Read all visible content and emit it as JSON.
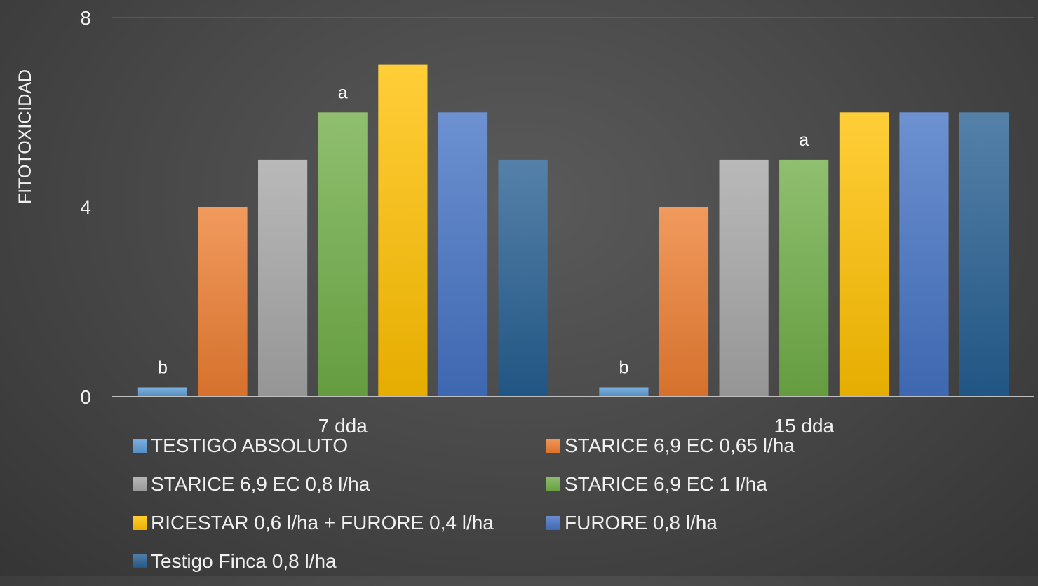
{
  "chart_data": {
    "type": "bar",
    "title": "",
    "xlabel": "",
    "ylabel": "FITOTOXICIDAD",
    "ylim": [
      0,
      8
    ],
    "yticks": [
      "0",
      "4",
      "8"
    ],
    "grid": true,
    "legend_position": "bottom",
    "categories": [
      "7 dda",
      "15 dda"
    ],
    "series": [
      {
        "name": "TESTIGO ABSOLUTO",
        "values": [
          0.2,
          0.2
        ],
        "color": "#5b9bd5",
        "labels": [
          "b",
          "b"
        ]
      },
      {
        "name": "STARICE 6,9 EC 0,65 l/ha",
        "values": [
          4,
          4
        ],
        "color": "#ed7d31",
        "labels": [
          "",
          ""
        ]
      },
      {
        "name": "STARICE 6,9 EC 0,8 l/ha",
        "values": [
          5,
          5
        ],
        "color": "#a5a5a5",
        "labels": [
          "",
          ""
        ]
      },
      {
        "name": "STARICE 6,9 EC 1 l/ha",
        "values": [
          6,
          5
        ],
        "color": "#70ad47",
        "labels": [
          "a",
          "a"
        ]
      },
      {
        "name": "RICESTAR 0,6 l/ha + FURORE 0,4 l/ha",
        "values": [
          7,
          6
        ],
        "color": "#ffc000",
        "labels": [
          "",
          ""
        ]
      },
      {
        "name": "FURORE 0,8 l/ha",
        "values": [
          6,
          6
        ],
        "color": "#4472c4",
        "labels": [
          "",
          ""
        ]
      },
      {
        "name": "Testigo Finca 0,8 l/ha",
        "values": [
          5,
          6
        ],
        "color": "#255e91",
        "labels": [
          "",
          ""
        ]
      }
    ]
  }
}
